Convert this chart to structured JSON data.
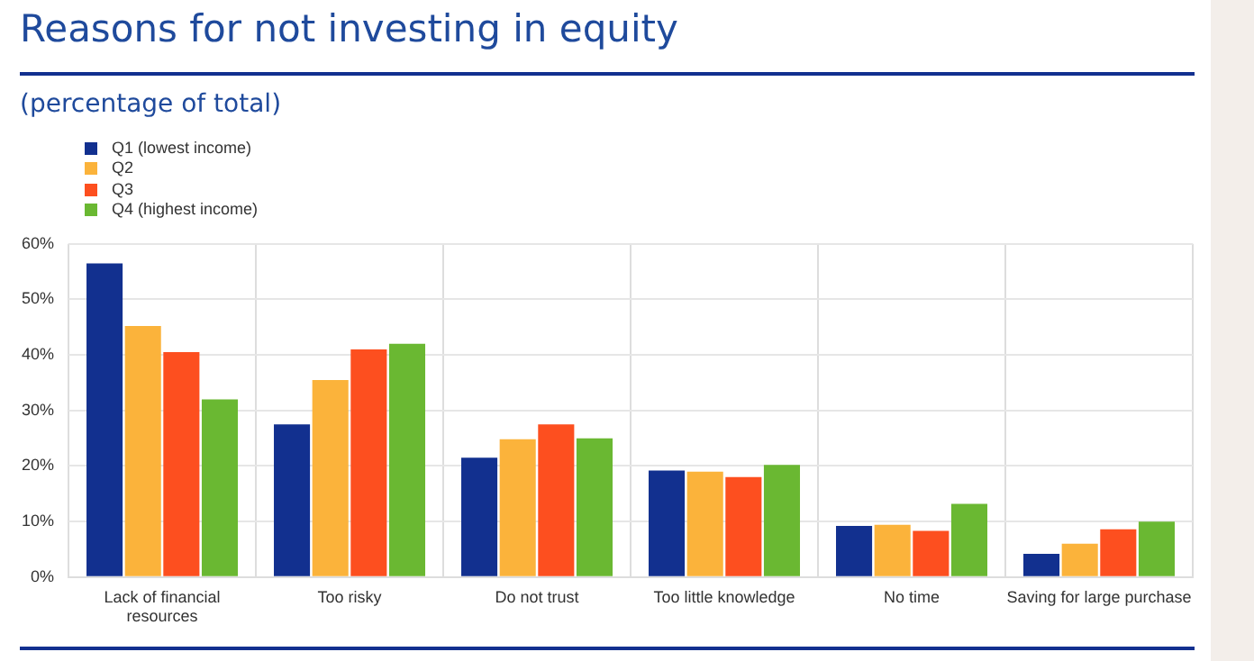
{
  "chart_data": {
    "type": "bar",
    "title": "Reasons for not investing in equity",
    "subtitle": "(percentage of total)",
    "categories": [
      [
        "Lack of financial",
        "resources"
      ],
      "Too risky",
      "Do not trust",
      "Too little knowledge",
      "No time",
      "Saving for large purchase"
    ],
    "series": [
      {
        "name": "Q1 (lowest income)",
        "color": "#12308f",
        "values": [
          56.5,
          27.5,
          21.5,
          19.2,
          9.2,
          4.2
        ]
      },
      {
        "name": "Q2",
        "color": "#fbb33b",
        "values": [
          45.2,
          35.5,
          24.8,
          19,
          9.4,
          6
        ]
      },
      {
        "name": "Q3",
        "color": "#fd4f1f",
        "values": [
          40.5,
          41,
          27.5,
          18,
          8.3,
          8.6
        ]
      },
      {
        "name": "Q4 (highest income)",
        "color": "#6ab832",
        "values": [
          32,
          42,
          25,
          20.2,
          13.2,
          10
        ]
      }
    ],
    "ylim": [
      0,
      60
    ],
    "yticks": [
      {
        "value": 0,
        "label": "0%"
      },
      {
        "value": 10,
        "label": "10%"
      },
      {
        "value": 20,
        "label": "20%"
      },
      {
        "value": 30,
        "label": "30%"
      },
      {
        "value": 40,
        "label": "40%"
      },
      {
        "value": 50,
        "label": "50%"
      },
      {
        "value": 60,
        "label": "60%"
      }
    ],
    "grid": true,
    "legend": "top left"
  }
}
